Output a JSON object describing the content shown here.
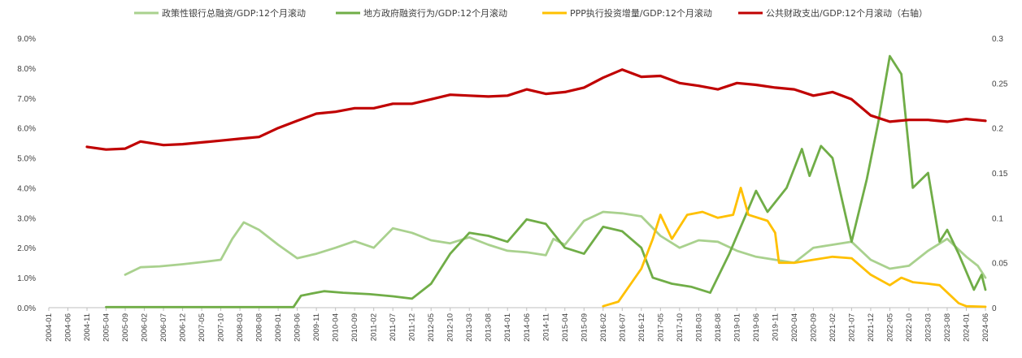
{
  "chart_data": {
    "type": "line",
    "legend_position": "top",
    "grid": false,
    "left_axis": {
      "min": 0,
      "max": 9,
      "ticks": [
        "0.0%",
        "1.0%",
        "2.0%",
        "3.0%",
        "4.0%",
        "5.0%",
        "6.0%",
        "7.0%",
        "8.0%",
        "9.0%"
      ]
    },
    "right_axis": {
      "min": 0,
      "max": 0.3,
      "ticks": [
        "0",
        "0.05",
        "0.1",
        "0.15",
        "0.2",
        "0.25",
        "0.3"
      ]
    },
    "x_range": [
      "2004-01",
      "2024-06"
    ],
    "x_ticks": [
      "2004-01",
      "2004-06",
      "2004-11",
      "2005-04",
      "2005-09",
      "2006-02",
      "2006-07",
      "2006-12",
      "2007-05",
      "2007-10",
      "2008-03",
      "2008-08",
      "2009-01",
      "2009-06",
      "2009-11",
      "2010-04",
      "2010-09",
      "2011-02",
      "2011-07",
      "2011-12",
      "2012-05",
      "2012-10",
      "2013-03",
      "2013-08",
      "2014-01",
      "2014-06",
      "2014-11",
      "2015-04",
      "2015-09",
      "2016-02",
      "2016-07",
      "2016-12",
      "2017-05",
      "2017-10",
      "2018-03",
      "2018-08",
      "2019-01",
      "2019-06",
      "2019-11",
      "2020-04",
      "2020-09",
      "2021-02",
      "2021-07",
      "2021-12",
      "2022-05",
      "2022-10",
      "2023-03",
      "2023-08",
      "2024-01",
      "2024-06"
    ],
    "series": [
      {
        "name": "政策性银行总融资/GDP:12个月滚动",
        "color": "#A9D18E",
        "axis": "left",
        "points": [
          [
            "2005-09",
            1.1
          ],
          [
            "2006-01",
            1.35
          ],
          [
            "2006-06",
            1.38
          ],
          [
            "2006-12",
            1.45
          ],
          [
            "2007-05",
            1.52
          ],
          [
            "2007-10",
            1.6
          ],
          [
            "2008-01",
            2.3
          ],
          [
            "2008-04",
            2.85
          ],
          [
            "2008-08",
            2.6
          ],
          [
            "2009-01",
            2.1
          ],
          [
            "2009-06",
            1.65
          ],
          [
            "2009-11",
            1.8
          ],
          [
            "2010-04",
            2.0
          ],
          [
            "2010-09",
            2.22
          ],
          [
            "2011-02",
            2.0
          ],
          [
            "2011-07",
            2.65
          ],
          [
            "2011-12",
            2.5
          ],
          [
            "2012-05",
            2.25
          ],
          [
            "2012-10",
            2.15
          ],
          [
            "2013-03",
            2.35
          ],
          [
            "2013-08",
            2.1
          ],
          [
            "2014-01",
            1.9
          ],
          [
            "2014-06",
            1.85
          ],
          [
            "2014-11",
            1.75
          ],
          [
            "2015-01",
            2.3
          ],
          [
            "2015-04",
            2.1
          ],
          [
            "2015-09",
            2.9
          ],
          [
            "2016-02",
            3.2
          ],
          [
            "2016-07",
            3.15
          ],
          [
            "2016-12",
            3.05
          ],
          [
            "2017-05",
            2.4
          ],
          [
            "2017-10",
            2.0
          ],
          [
            "2018-03",
            2.25
          ],
          [
            "2018-08",
            2.2
          ],
          [
            "2019-01",
            1.9
          ],
          [
            "2019-06",
            1.7
          ],
          [
            "2019-11",
            1.6
          ],
          [
            "2020-04",
            1.5
          ],
          [
            "2020-09",
            2.0
          ],
          [
            "2021-02",
            2.1
          ],
          [
            "2021-07",
            2.2
          ],
          [
            "2021-12",
            1.6
          ],
          [
            "2022-05",
            1.3
          ],
          [
            "2022-10",
            1.4
          ],
          [
            "2023-03",
            1.9
          ],
          [
            "2023-08",
            2.3
          ],
          [
            "2024-01",
            1.7
          ],
          [
            "2024-04",
            1.4
          ],
          [
            "2024-06",
            1.0
          ]
        ]
      },
      {
        "name": "地方政府融资行为/GDP:12个月滚动",
        "color": "#70AD47",
        "axis": "left",
        "points": [
          [
            "2005-04",
            0.02
          ],
          [
            "2009-05",
            0.02
          ],
          [
            "2009-07",
            0.4
          ],
          [
            "2010-01",
            0.55
          ],
          [
            "2010-06",
            0.5
          ],
          [
            "2011-01",
            0.45
          ],
          [
            "2011-07",
            0.38
          ],
          [
            "2011-12",
            0.3
          ],
          [
            "2012-05",
            0.8
          ],
          [
            "2012-10",
            1.8
          ],
          [
            "2013-03",
            2.5
          ],
          [
            "2013-08",
            2.4
          ],
          [
            "2014-01",
            2.2
          ],
          [
            "2014-06",
            2.95
          ],
          [
            "2014-11",
            2.8
          ],
          [
            "2015-04",
            2.0
          ],
          [
            "2015-09",
            1.8
          ],
          [
            "2016-02",
            2.7
          ],
          [
            "2016-07",
            2.55
          ],
          [
            "2016-12",
            2.0
          ],
          [
            "2017-03",
            1.0
          ],
          [
            "2017-08",
            0.8
          ],
          [
            "2018-01",
            0.7
          ],
          [
            "2018-06",
            0.5
          ],
          [
            "2018-11",
            1.8
          ],
          [
            "2019-06",
            3.9
          ],
          [
            "2019-09",
            3.2
          ],
          [
            "2020-02",
            4.0
          ],
          [
            "2020-06",
            5.3
          ],
          [
            "2020-08",
            4.4
          ],
          [
            "2020-11",
            5.4
          ],
          [
            "2021-02",
            5.0
          ],
          [
            "2021-07",
            2.2
          ],
          [
            "2021-11",
            4.3
          ],
          [
            "2022-02",
            6.2
          ],
          [
            "2022-05",
            8.4
          ],
          [
            "2022-08",
            7.8
          ],
          [
            "2022-11",
            4.0
          ],
          [
            "2023-03",
            4.5
          ],
          [
            "2023-06",
            2.2
          ],
          [
            "2023-08",
            2.6
          ],
          [
            "2023-11",
            1.8
          ],
          [
            "2024-03",
            0.6
          ],
          [
            "2024-05",
            1.1
          ],
          [
            "2024-06",
            0.6
          ]
        ]
      },
      {
        "name": "PPP执行投资增量/GDP:12个月滚动",
        "color": "#FFC000",
        "axis": "left",
        "points": [
          [
            "2016-02",
            0.05
          ],
          [
            "2016-06",
            0.2
          ],
          [
            "2016-12",
            1.3
          ],
          [
            "2017-03",
            2.3
          ],
          [
            "2017-05",
            3.1
          ],
          [
            "2017-08",
            2.3
          ],
          [
            "2017-12",
            3.1
          ],
          [
            "2018-04",
            3.2
          ],
          [
            "2018-08",
            3.0
          ],
          [
            "2018-12",
            3.1
          ],
          [
            "2019-02",
            4.0
          ],
          [
            "2019-04",
            3.1
          ],
          [
            "2019-09",
            2.9
          ],
          [
            "2019-11",
            2.5
          ],
          [
            "2019-12",
            1.5
          ],
          [
            "2020-04",
            1.5
          ],
          [
            "2020-09",
            1.6
          ],
          [
            "2021-02",
            1.7
          ],
          [
            "2021-07",
            1.65
          ],
          [
            "2021-12",
            1.1
          ],
          [
            "2022-05",
            0.75
          ],
          [
            "2022-08",
            1.0
          ],
          [
            "2022-11",
            0.85
          ],
          [
            "2023-03",
            0.8
          ],
          [
            "2023-06",
            0.75
          ],
          [
            "2023-11",
            0.15
          ],
          [
            "2024-01",
            0.05
          ],
          [
            "2024-06",
            0.03
          ]
        ]
      },
      {
        "name": "公共财政支出/GDP:12个月滚动（右轴）",
        "color": "#C00000",
        "axis": "right",
        "points": [
          [
            "2004-11",
            0.179
          ],
          [
            "2005-04",
            0.176
          ],
          [
            "2005-09",
            0.177
          ],
          [
            "2006-01",
            0.185
          ],
          [
            "2006-07",
            0.181
          ],
          [
            "2006-12",
            0.182
          ],
          [
            "2007-05",
            0.184
          ],
          [
            "2007-10",
            0.186
          ],
          [
            "2008-03",
            0.188
          ],
          [
            "2008-08",
            0.19
          ],
          [
            "2009-01",
            0.2
          ],
          [
            "2009-06",
            0.208
          ],
          [
            "2009-11",
            0.216
          ],
          [
            "2010-04",
            0.218
          ],
          [
            "2010-09",
            0.222
          ],
          [
            "2011-02",
            0.222
          ],
          [
            "2011-07",
            0.227
          ],
          [
            "2011-12",
            0.227
          ],
          [
            "2012-05",
            0.232
          ],
          [
            "2012-10",
            0.237
          ],
          [
            "2013-03",
            0.236
          ],
          [
            "2013-08",
            0.235
          ],
          [
            "2014-01",
            0.236
          ],
          [
            "2014-06",
            0.243
          ],
          [
            "2014-11",
            0.238
          ],
          [
            "2015-04",
            0.24
          ],
          [
            "2015-09",
            0.245
          ],
          [
            "2016-02",
            0.256
          ],
          [
            "2016-07",
            0.265
          ],
          [
            "2016-12",
            0.257
          ],
          [
            "2017-05",
            0.258
          ],
          [
            "2017-10",
            0.25
          ],
          [
            "2018-03",
            0.247
          ],
          [
            "2018-08",
            0.243
          ],
          [
            "2019-01",
            0.25
          ],
          [
            "2019-06",
            0.248
          ],
          [
            "2019-11",
            0.245
          ],
          [
            "2020-04",
            0.243
          ],
          [
            "2020-09",
            0.236
          ],
          [
            "2021-02",
            0.24
          ],
          [
            "2021-07",
            0.232
          ],
          [
            "2021-12",
            0.214
          ],
          [
            "2022-05",
            0.207
          ],
          [
            "2022-10",
            0.209
          ],
          [
            "2023-03",
            0.209
          ],
          [
            "2023-08",
            0.207
          ],
          [
            "2024-01",
            0.21
          ],
          [
            "2024-06",
            0.208
          ]
        ]
      }
    ]
  }
}
